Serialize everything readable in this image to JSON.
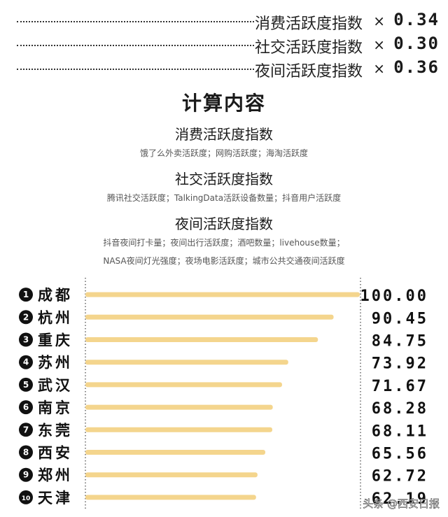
{
  "weights": [
    {
      "label": "消费活跃度指数",
      "multiplier": "×",
      "value": "0.34"
    },
    {
      "label": "社交活跃度指数",
      "multiplier": "×",
      "value": "0.30"
    },
    {
      "label": "夜间活跃度指数",
      "multiplier": "×",
      "value": "0.36"
    }
  ],
  "calc": {
    "title": "计算内容",
    "sections": [
      {
        "title": "消费活跃度指数",
        "desc": [
          "饿了么外卖活跃度；网购活跃度；海淘活跃度"
        ]
      },
      {
        "title": "社交活跃度指数",
        "desc": [
          "腾讯社交活跃度；TalkingData活跃设备数量；抖音用户活跃度"
        ]
      },
      {
        "title": "夜间活跃度指数",
        "desc": [
          "抖音夜间打卡量；夜间出行活跃度；酒吧数量；livehouse数量；",
          "NASA夜间灯光强度；夜场电影活跃度；城市公共交通夜间活跃度"
        ]
      }
    ]
  },
  "chart_data": {
    "type": "bar",
    "orientation": "horizontal",
    "ranks": [
      "1",
      "2",
      "3",
      "4",
      "5",
      "6",
      "7",
      "8",
      "9",
      "10"
    ],
    "categories": [
      "成都",
      "杭州",
      "重庆",
      "苏州",
      "武汉",
      "南京",
      "东莞",
      "西安",
      "郑州",
      "天津"
    ],
    "values": [
      100.0,
      90.45,
      84.75,
      73.92,
      71.67,
      68.28,
      68.11,
      65.56,
      62.72,
      62.19
    ],
    "value_labels": [
      "100.00",
      "90.45",
      "84.75",
      "73.92",
      "71.67",
      "68.28",
      "68.11",
      "65.56",
      "62.72",
      "62.19"
    ],
    "xlim": [
      0,
      100
    ],
    "bar_color": "#f4d58d",
    "title": "",
    "xlabel": "",
    "ylabel": ""
  },
  "watermark": "头条 @西安日报"
}
